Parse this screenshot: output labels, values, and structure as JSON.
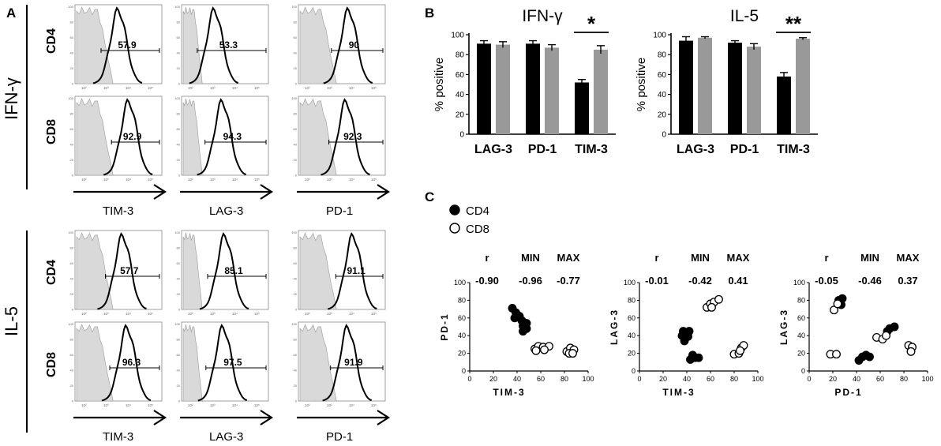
{
  "panel_labels": {
    "a": "A",
    "b": "B",
    "c": "C"
  },
  "panel_a": {
    "sections": [
      {
        "cytokine": "IFN-γ",
        "rows": [
          {
            "cell": "CD4",
            "values": [
              "57.9",
              "53.3",
              "90"
            ]
          },
          {
            "cell": "CD8",
            "values": [
              "92.9",
              "94.3",
              "92.3"
            ]
          }
        ],
        "markers": [
          "TIM-3",
          "LAG-3",
          "PD-1"
        ]
      },
      {
        "cytokine": "IL-5",
        "rows": [
          {
            "cell": "CD4",
            "values": [
              "57.7",
              "85.1",
              "91.1"
            ]
          },
          {
            "cell": "CD8",
            "values": [
              "96.3",
              "97.5",
              "91.9"
            ]
          }
        ],
        "markers": [
          "TIM-3",
          "LAG-3",
          "PD-1"
        ]
      }
    ],
    "histogram_tick_labels": [
      "10²",
      "10³",
      "10⁴",
      "10⁵"
    ],
    "histogram_y_ticks": [
      "100",
      "80",
      "60",
      "40",
      "20",
      "0"
    ]
  },
  "chart_data": [
    {
      "type": "bar",
      "title": "IFN-γ",
      "ylabel": "% positive",
      "categories": [
        "LAG-3",
        "PD-1",
        "TIM-3"
      ],
      "series": [
        {
          "values": [
            91,
            91,
            52
          ],
          "errors": [
            3,
            3,
            3
          ],
          "color": "#000000"
        },
        {
          "values": [
            90,
            87,
            85
          ],
          "errors": [
            3,
            3,
            4
          ],
          "color": "#999999"
        }
      ],
      "ylim": [
        0,
        100
      ],
      "yticks": [
        0,
        20,
        40,
        60,
        80,
        100
      ],
      "significance": {
        "category": "TIM-3",
        "label": "*"
      }
    },
    {
      "type": "bar",
      "title": "IL-5",
      "ylabel": "% positive",
      "categories": [
        "LAG-3",
        "PD-1",
        "TIM-3"
      ],
      "series": [
        {
          "values": [
            94,
            92,
            58
          ],
          "errors": [
            4,
            2,
            4
          ],
          "color": "#000000"
        },
        {
          "values": [
            97,
            88,
            96
          ],
          "errors": [
            1,
            3,
            1
          ],
          "color": "#999999"
        }
      ],
      "ylim": [
        0,
        100
      ],
      "yticks": [
        0,
        20,
        40,
        60,
        80,
        100
      ],
      "significance": {
        "category": "TIM-3",
        "label": "**"
      }
    },
    {
      "type": "scatter",
      "xlabel": "TIM-3",
      "ylabel": "PD-1",
      "xlim": [
        0,
        100
      ],
      "ylim": [
        0,
        100
      ],
      "xticks": [
        0,
        20,
        40,
        60,
        80,
        100
      ],
      "yticks": [
        0,
        20,
        40,
        60,
        80,
        100
      ],
      "stats": {
        "r": "-0.90",
        "min": "-0.96",
        "max": "-0.77"
      },
      "series": [
        {
          "name": "CD4",
          "filled": true,
          "points": [
            [
              36,
              71
            ],
            [
              39,
              66
            ],
            [
              42,
              62
            ],
            [
              38,
              60
            ],
            [
              44,
              57
            ],
            [
              45,
              51
            ],
            [
              48,
              54
            ],
            [
              45,
              45
            ],
            [
              48,
              48
            ]
          ]
        },
        {
          "name": "CD8",
          "filled": false,
          "points": [
            [
              55,
              25
            ],
            [
              58,
              28
            ],
            [
              62,
              27
            ],
            [
              67,
              28
            ],
            [
              56,
              23
            ],
            [
              63,
              24
            ],
            [
              82,
              22
            ],
            [
              85,
              26
            ],
            [
              88,
              24
            ],
            [
              84,
              20
            ],
            [
              87,
              20
            ]
          ]
        }
      ]
    },
    {
      "type": "scatter",
      "xlabel": "TIM-3",
      "ylabel": "LAG-3",
      "xlim": [
        0,
        100
      ],
      "ylim": [
        0,
        100
      ],
      "xticks": [
        0,
        20,
        40,
        60,
        80,
        100
      ],
      "yticks": [
        0,
        20,
        40,
        60,
        80,
        100
      ],
      "stats": {
        "r": "-0.01",
        "min": "-0.42",
        "max": "0.41"
      },
      "series": [
        {
          "name": "CD4",
          "filled": true,
          "points": [
            [
              37,
              45
            ],
            [
              42,
              45
            ],
            [
              36,
              40
            ],
            [
              41,
              39
            ],
            [
              38,
              34
            ],
            [
              45,
              18
            ],
            [
              47,
              15
            ],
            [
              43,
              13
            ],
            [
              50,
              15
            ]
          ]
        },
        {
          "name": "CD8",
          "filled": false,
          "points": [
            [
              57,
              72
            ],
            [
              60,
              76
            ],
            [
              63,
              78
            ],
            [
              67,
              81
            ],
            [
              61,
              72
            ],
            [
              80,
              19
            ],
            [
              84,
              20
            ],
            [
              86,
              26
            ],
            [
              88,
              29
            ],
            [
              85,
              23
            ]
          ]
        }
      ]
    },
    {
      "type": "scatter",
      "xlabel": "PD-1",
      "ylabel": "LAG-3",
      "xlim": [
        0,
        100
      ],
      "ylim": [
        0,
        100
      ],
      "xticks": [
        0,
        20,
        40,
        60,
        80,
        100
      ],
      "yticks": [
        0,
        20,
        40,
        60,
        80,
        100
      ],
      "stats": {
        "r": "-0.05",
        "min": "-0.46",
        "max": "0.37"
      },
      "series": [
        {
          "name": "CD4",
          "filled": true,
          "points": [
            [
              25,
              80
            ],
            [
              28,
              82
            ],
            [
              27,
              75
            ],
            [
              42,
              12
            ],
            [
              45,
              16
            ],
            [
              48,
              18
            ],
            [
              51,
              16
            ],
            [
              68,
              48
            ],
            [
              72,
              50
            ],
            [
              66,
              45
            ]
          ]
        },
        {
          "name": "CD8",
          "filled": false,
          "points": [
            [
              21,
              69
            ],
            [
              24,
              76
            ],
            [
              18,
              19
            ],
            [
              23,
              19
            ],
            [
              57,
              38
            ],
            [
              62,
              36
            ],
            [
              65,
              40
            ],
            [
              84,
              29
            ],
            [
              87,
              27
            ],
            [
              86,
              22
            ]
          ]
        }
      ]
    }
  ],
  "scatter_legend": [
    {
      "name": "CD4",
      "filled": true
    },
    {
      "name": "CD8",
      "filled": false
    }
  ],
  "stat_headers": {
    "r": "r",
    "min": "MIN",
    "max": "MAX"
  }
}
